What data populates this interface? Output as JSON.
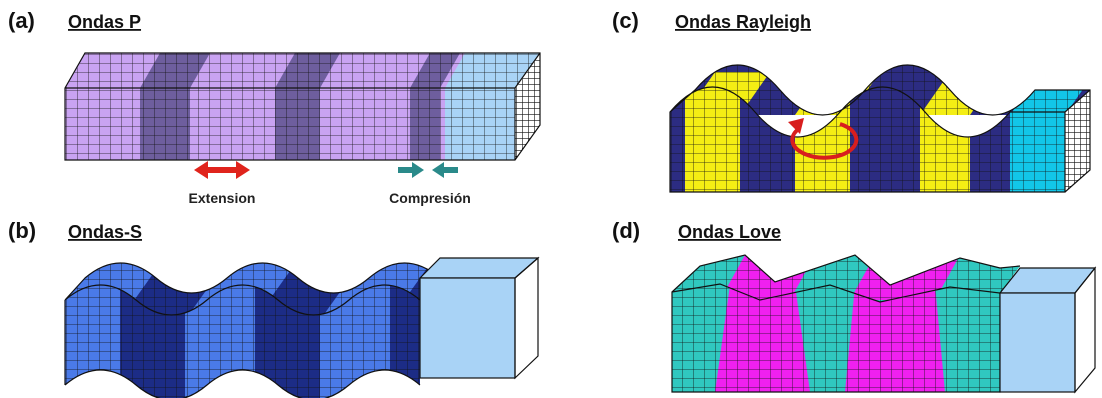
{
  "panels": [
    {
      "label": "(a)",
      "title": "Ondas P",
      "annotations": [
        "Extension",
        "Compresión"
      ]
    },
    {
      "label": "(b)",
      "title": "Ondas-S"
    },
    {
      "label": "(c)",
      "title": "Ondas Rayleigh"
    },
    {
      "label": "(d)",
      "title": "Ondas Love"
    }
  ]
}
